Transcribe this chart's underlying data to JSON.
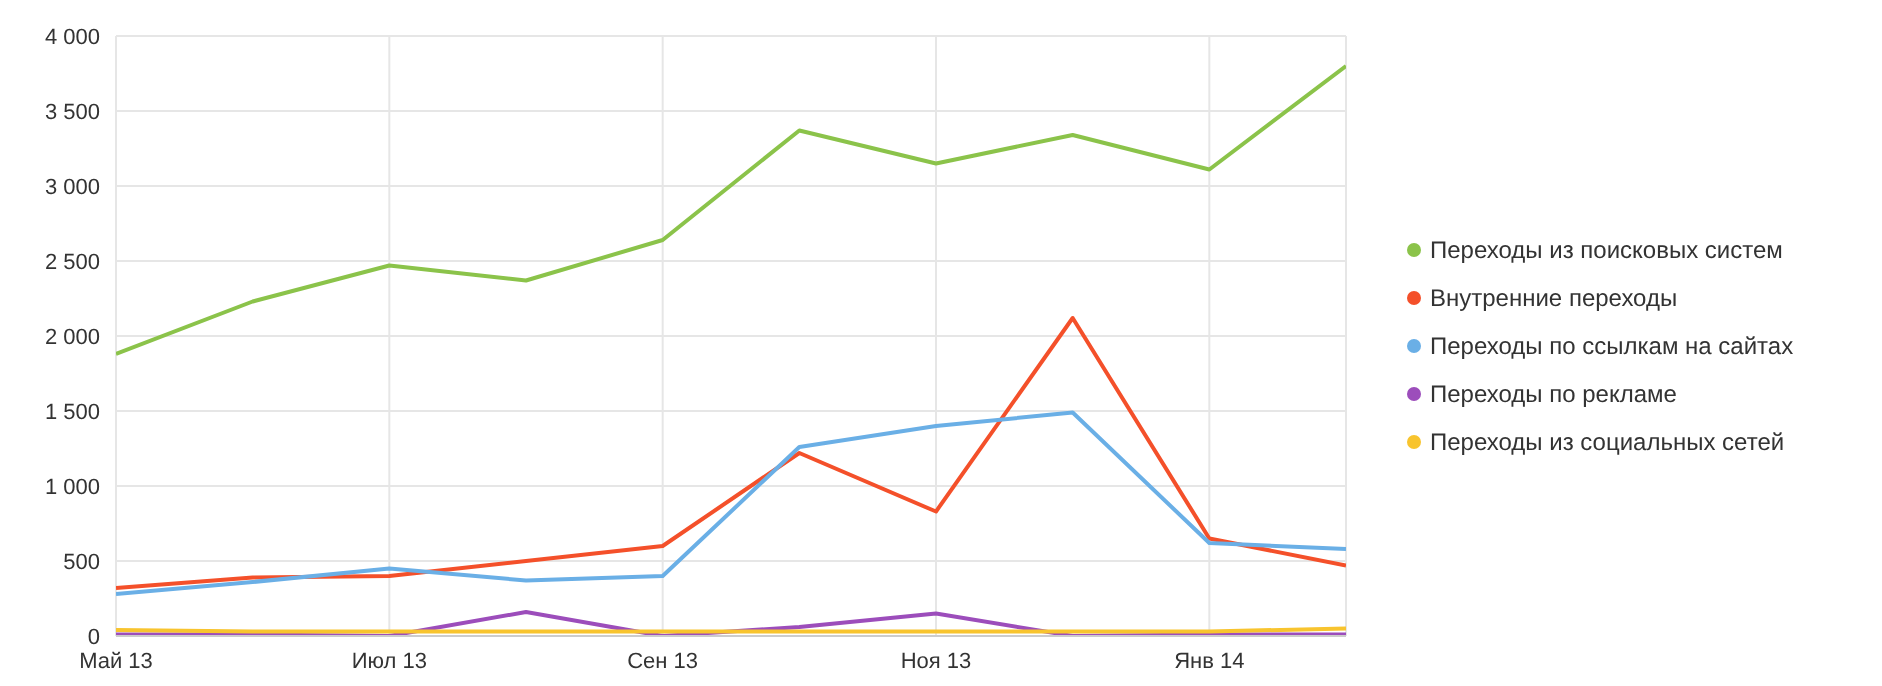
{
  "chart_data": {
    "type": "line",
    "categories": [
      "Май 13",
      null,
      "Июл 13",
      null,
      "Сен 13",
      null,
      "Ноя 13",
      null,
      "Янв 14",
      null
    ],
    "series": [
      {
        "name": "Переходы из поисковых систем",
        "color": "#8bc34a",
        "values": [
          1880,
          2230,
          2470,
          2370,
          2640,
          3370,
          3150,
          3340,
          3110,
          3800
        ]
      },
      {
        "name": "Внутренние переходы",
        "color": "#f4502a",
        "values": [
          320,
          390,
          400,
          500,
          600,
          1220,
          830,
          2120,
          650,
          470
        ]
      },
      {
        "name": "Переходы по ссылкам на сайтах",
        "color": "#6aafe6",
        "values": [
          280,
          360,
          450,
          370,
          400,
          1260,
          1400,
          1490,
          620,
          580
        ]
      },
      {
        "name": "Переходы по рекламе",
        "color": "#9c4dbb",
        "values": [
          10,
          10,
          0,
          160,
          0,
          60,
          150,
          0,
          10,
          10
        ]
      },
      {
        "name": "Переходы из социальных сетей",
        "color": "#f8c42e",
        "values": [
          40,
          30,
          30,
          30,
          30,
          30,
          30,
          30,
          30,
          50
        ]
      }
    ],
    "ylim": [
      0,
      4000
    ],
    "yticks": [
      0,
      {
        "value": 500,
        "label": "500"
      },
      {
        "value": 1000,
        "label": "1 000"
      },
      {
        "value": 1500,
        "label": "1 500"
      },
      {
        "value": 2000,
        "label": "2 000"
      },
      {
        "value": 2500,
        "label": "2 500"
      },
      {
        "value": 3000,
        "label": "3 000"
      },
      {
        "value": 3500,
        "label": "3 500"
      },
      {
        "value": 4000,
        "label": "4 000"
      }
    ],
    "grid": true,
    "legend": "right",
    "marker": "none",
    "line_style": "solid"
  }
}
